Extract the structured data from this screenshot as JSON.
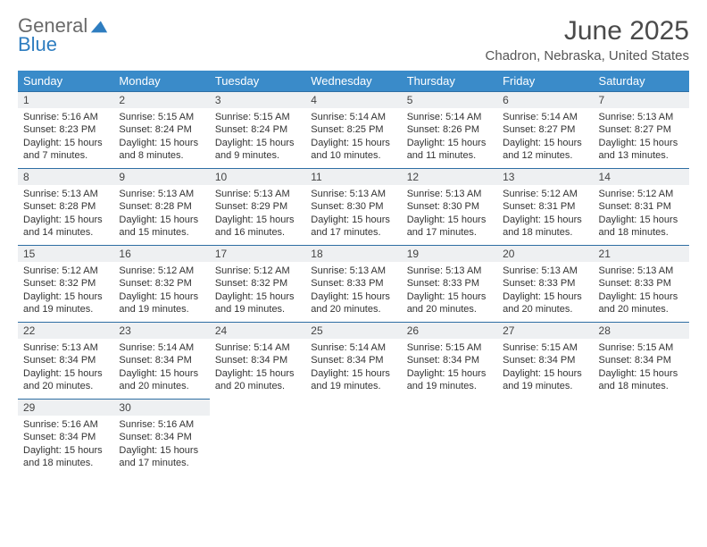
{
  "logo": {
    "word1": "General",
    "word2": "Blue"
  },
  "title": "June 2025",
  "subtitle": "Chadron, Nebraska, United States",
  "colors": {
    "header_bg": "#3a8bc9",
    "header_text": "#ffffff",
    "band_bg": "#eef0f2",
    "band_border": "#2e6ea3",
    "text": "#333333",
    "logo_gray": "#6a6a6a",
    "logo_blue": "#2e7dc0"
  },
  "day_headers": [
    "Sunday",
    "Monday",
    "Tuesday",
    "Wednesday",
    "Thursday",
    "Friday",
    "Saturday"
  ],
  "weeks": [
    [
      {
        "n": "1",
        "sr": "5:16 AM",
        "ss": "8:23 PM",
        "dl": "15 hours and 7 minutes."
      },
      {
        "n": "2",
        "sr": "5:15 AM",
        "ss": "8:24 PM",
        "dl": "15 hours and 8 minutes."
      },
      {
        "n": "3",
        "sr": "5:15 AM",
        "ss": "8:24 PM",
        "dl": "15 hours and 9 minutes."
      },
      {
        "n": "4",
        "sr": "5:14 AM",
        "ss": "8:25 PM",
        "dl": "15 hours and 10 minutes."
      },
      {
        "n": "5",
        "sr": "5:14 AM",
        "ss": "8:26 PM",
        "dl": "15 hours and 11 minutes."
      },
      {
        "n": "6",
        "sr": "5:14 AM",
        "ss": "8:27 PM",
        "dl": "15 hours and 12 minutes."
      },
      {
        "n": "7",
        "sr": "5:13 AM",
        "ss": "8:27 PM",
        "dl": "15 hours and 13 minutes."
      }
    ],
    [
      {
        "n": "8",
        "sr": "5:13 AM",
        "ss": "8:28 PM",
        "dl": "15 hours and 14 minutes."
      },
      {
        "n": "9",
        "sr": "5:13 AM",
        "ss": "8:28 PM",
        "dl": "15 hours and 15 minutes."
      },
      {
        "n": "10",
        "sr": "5:13 AM",
        "ss": "8:29 PM",
        "dl": "15 hours and 16 minutes."
      },
      {
        "n": "11",
        "sr": "5:13 AM",
        "ss": "8:30 PM",
        "dl": "15 hours and 17 minutes."
      },
      {
        "n": "12",
        "sr": "5:13 AM",
        "ss": "8:30 PM",
        "dl": "15 hours and 17 minutes."
      },
      {
        "n": "13",
        "sr": "5:12 AM",
        "ss": "8:31 PM",
        "dl": "15 hours and 18 minutes."
      },
      {
        "n": "14",
        "sr": "5:12 AM",
        "ss": "8:31 PM",
        "dl": "15 hours and 18 minutes."
      }
    ],
    [
      {
        "n": "15",
        "sr": "5:12 AM",
        "ss": "8:32 PM",
        "dl": "15 hours and 19 minutes."
      },
      {
        "n": "16",
        "sr": "5:12 AM",
        "ss": "8:32 PM",
        "dl": "15 hours and 19 minutes."
      },
      {
        "n": "17",
        "sr": "5:12 AM",
        "ss": "8:32 PM",
        "dl": "15 hours and 19 minutes."
      },
      {
        "n": "18",
        "sr": "5:13 AM",
        "ss": "8:33 PM",
        "dl": "15 hours and 20 minutes."
      },
      {
        "n": "19",
        "sr": "5:13 AM",
        "ss": "8:33 PM",
        "dl": "15 hours and 20 minutes."
      },
      {
        "n": "20",
        "sr": "5:13 AM",
        "ss": "8:33 PM",
        "dl": "15 hours and 20 minutes."
      },
      {
        "n": "21",
        "sr": "5:13 AM",
        "ss": "8:33 PM",
        "dl": "15 hours and 20 minutes."
      }
    ],
    [
      {
        "n": "22",
        "sr": "5:13 AM",
        "ss": "8:34 PM",
        "dl": "15 hours and 20 minutes."
      },
      {
        "n": "23",
        "sr": "5:14 AM",
        "ss": "8:34 PM",
        "dl": "15 hours and 20 minutes."
      },
      {
        "n": "24",
        "sr": "5:14 AM",
        "ss": "8:34 PM",
        "dl": "15 hours and 20 minutes."
      },
      {
        "n": "25",
        "sr": "5:14 AM",
        "ss": "8:34 PM",
        "dl": "15 hours and 19 minutes."
      },
      {
        "n": "26",
        "sr": "5:15 AM",
        "ss": "8:34 PM",
        "dl": "15 hours and 19 minutes."
      },
      {
        "n": "27",
        "sr": "5:15 AM",
        "ss": "8:34 PM",
        "dl": "15 hours and 19 minutes."
      },
      {
        "n": "28",
        "sr": "5:15 AM",
        "ss": "8:34 PM",
        "dl": "15 hours and 18 minutes."
      }
    ],
    [
      {
        "n": "29",
        "sr": "5:16 AM",
        "ss": "8:34 PM",
        "dl": "15 hours and 18 minutes."
      },
      {
        "n": "30",
        "sr": "5:16 AM",
        "ss": "8:34 PM",
        "dl": "15 hours and 17 minutes."
      },
      null,
      null,
      null,
      null,
      null
    ]
  ],
  "labels": {
    "sunrise": "Sunrise:",
    "sunset": "Sunset:",
    "daylight": "Daylight:"
  }
}
